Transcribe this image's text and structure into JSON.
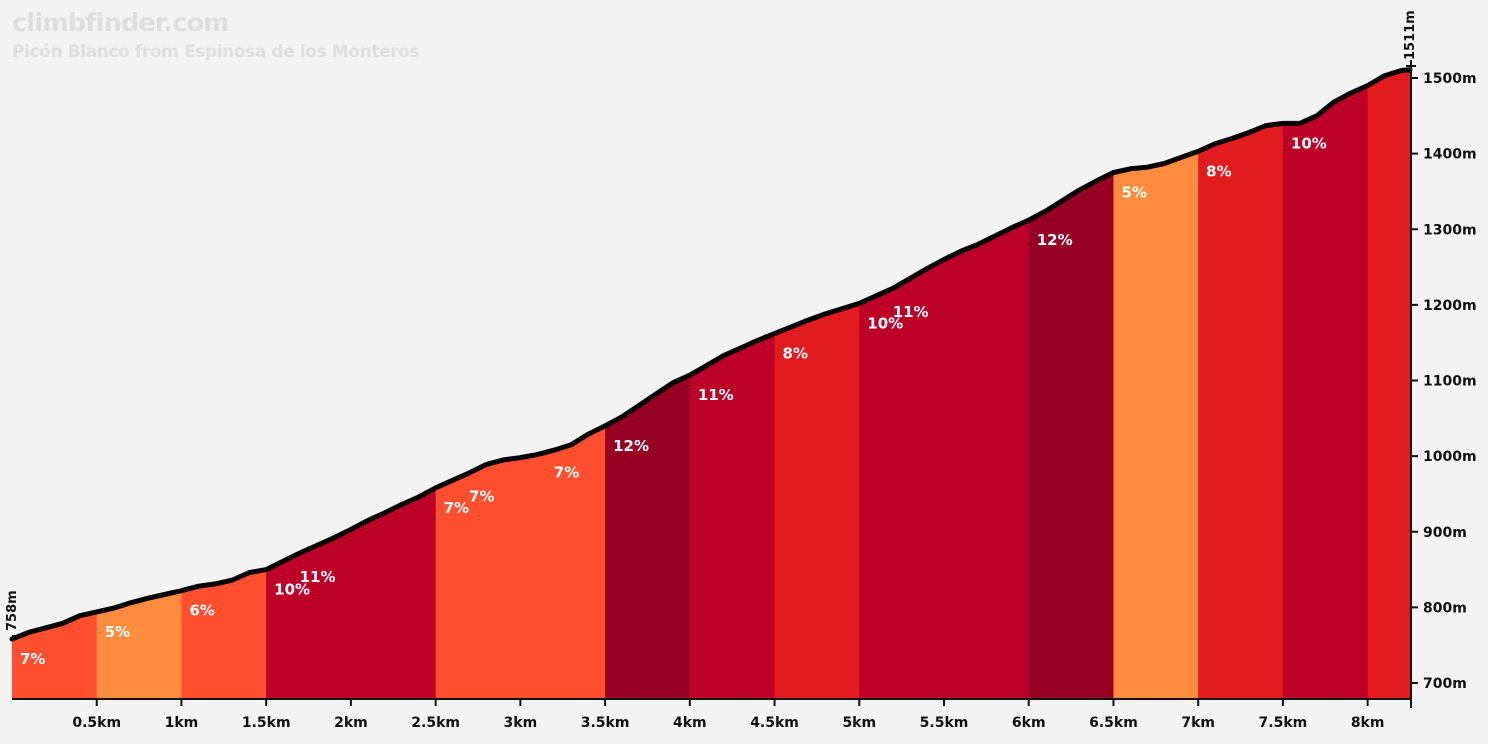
{
  "chart_data": {
    "type": "area",
    "title": "climbfinder.com",
    "subtitle": "Picón Blanco from Espinosa de los Monteros",
    "start_elevation_label": "758m",
    "end_elevation_label": "1511m",
    "x_unit": "km",
    "y_unit": "m",
    "xlim": [
      0,
      8.25
    ],
    "ylim": [
      685,
      1511
    ],
    "x_ticks": [
      0.5,
      1,
      1.5,
      2,
      2.5,
      3,
      3.5,
      4,
      4.5,
      5,
      5.5,
      6,
      6.5,
      7,
      7.5,
      8
    ],
    "x_tick_labels": [
      "0.5km",
      "1km",
      "1.5km",
      "2km",
      "2.5km",
      "3km",
      "3.5km",
      "4km",
      "4.5km",
      "5km",
      "5.5km",
      "6km",
      "6.5km",
      "7km",
      "7.5km",
      "8km"
    ],
    "y_ticks": [
      700,
      800,
      900,
      1000,
      1100,
      1200,
      1300,
      1400,
      1500
    ],
    "y_tick_labels": [
      "700m",
      "800m",
      "900m",
      "1000m",
      "1100m",
      "1200m",
      "1300m",
      "1400m",
      "1500m"
    ],
    "segments": [
      {
        "start": 0.0,
        "end": 0.5,
        "gradient_label": "7%",
        "color": "#ff4f2e"
      },
      {
        "start": 0.5,
        "end": 1.0,
        "gradient_label": "5%",
        "color": "#ff8b3e"
      },
      {
        "start": 1.0,
        "end": 1.5,
        "gradient_label": "6%",
        "color": "#ff4f2e"
      },
      {
        "start": 1.5,
        "end": 2.5,
        "gradient_label": "10%",
        "color": "#bc0028"
      },
      {
        "start": 2.5,
        "end": 3.5,
        "gradient_label": "7%",
        "color": "#ff4f2e"
      },
      {
        "start": 3.5,
        "end": 4.0,
        "gradient_label": "12%",
        "color": "#960022"
      },
      {
        "start": 4.0,
        "end": 4.5,
        "gradient_label": "11%",
        "color": "#bc0028"
      },
      {
        "start": 4.5,
        "end": 5.0,
        "gradient_label": "8%",
        "color": "#e21b1f"
      },
      {
        "start": 5.0,
        "end": 6.0,
        "gradient_label": "10%",
        "color": "#bc0028"
      },
      {
        "start": 6.0,
        "end": 6.5,
        "gradient_label": "12%",
        "color": "#960022"
      },
      {
        "start": 6.5,
        "end": 7.0,
        "gradient_label": "5%",
        "color": "#ff8b3e"
      },
      {
        "start": 7.0,
        "end": 7.5,
        "gradient_label": "8%",
        "color": "#e21b1f"
      },
      {
        "start": 7.5,
        "end": 8.0,
        "gradient_label": "10%",
        "color": "#bc0028"
      },
      {
        "start": 8.0,
        "end": 8.25,
        "gradient_label": "",
        "color": "#e21b1f"
      }
    ],
    "extra_gradient_labels": [
      {
        "at": 1.65,
        "label": "11%"
      },
      {
        "at": 5.15,
        "label": "11%"
      },
      {
        "at": 3.15,
        "label": "7%"
      },
      {
        "at": 2.65,
        "label": "7%"
      }
    ],
    "profile": [
      [
        0.0,
        758
      ],
      [
        0.1,
        767
      ],
      [
        0.2,
        773
      ],
      [
        0.3,
        779
      ],
      [
        0.4,
        789
      ],
      [
        0.5,
        794
      ],
      [
        0.6,
        799
      ],
      [
        0.7,
        806
      ],
      [
        0.8,
        812
      ],
      [
        0.9,
        817
      ],
      [
        1.0,
        822
      ],
      [
        1.1,
        828
      ],
      [
        1.2,
        831
      ],
      [
        1.3,
        836
      ],
      [
        1.4,
        846
      ],
      [
        1.5,
        850
      ],
      [
        1.6,
        861
      ],
      [
        1.7,
        872
      ],
      [
        1.8,
        882
      ],
      [
        1.9,
        892
      ],
      [
        2.0,
        903
      ],
      [
        2.1,
        915
      ],
      [
        2.2,
        925
      ],
      [
        2.3,
        936
      ],
      [
        2.4,
        946
      ],
      [
        2.5,
        958
      ],
      [
        2.6,
        968
      ],
      [
        2.7,
        978
      ],
      [
        2.8,
        989
      ],
      [
        2.9,
        995
      ],
      [
        3.0,
        998
      ],
      [
        3.1,
        1002
      ],
      [
        3.2,
        1008
      ],
      [
        3.3,
        1015
      ],
      [
        3.4,
        1029
      ],
      [
        3.5,
        1040
      ],
      [
        3.6,
        1052
      ],
      [
        3.7,
        1067
      ],
      [
        3.8,
        1082
      ],
      [
        3.9,
        1097
      ],
      [
        4.0,
        1107
      ],
      [
        4.1,
        1120
      ],
      [
        4.2,
        1133
      ],
      [
        4.3,
        1143
      ],
      [
        4.4,
        1153
      ],
      [
        4.5,
        1162
      ],
      [
        4.6,
        1171
      ],
      [
        4.7,
        1180
      ],
      [
        4.8,
        1188
      ],
      [
        4.9,
        1195
      ],
      [
        5.0,
        1202
      ],
      [
        5.1,
        1212
      ],
      [
        5.2,
        1222
      ],
      [
        5.3,
        1235
      ],
      [
        5.4,
        1248
      ],
      [
        5.5,
        1260
      ],
      [
        5.6,
        1271
      ],
      [
        5.7,
        1280
      ],
      [
        5.8,
        1291
      ],
      [
        5.9,
        1302
      ],
      [
        6.0,
        1312
      ],
      [
        6.1,
        1324
      ],
      [
        6.2,
        1338
      ],
      [
        6.3,
        1352
      ],
      [
        6.4,
        1364
      ],
      [
        6.5,
        1375
      ],
      [
        6.6,
        1380
      ],
      [
        6.7,
        1382
      ],
      [
        6.8,
        1387
      ],
      [
        6.9,
        1395
      ],
      [
        7.0,
        1403
      ],
      [
        7.1,
        1413
      ],
      [
        7.2,
        1420
      ],
      [
        7.3,
        1428
      ],
      [
        7.4,
        1437
      ],
      [
        7.5,
        1440
      ],
      [
        7.6,
        1440
      ],
      [
        7.7,
        1450
      ],
      [
        7.8,
        1468
      ],
      [
        7.9,
        1480
      ],
      [
        8.0,
        1490
      ],
      [
        8.1,
        1503
      ],
      [
        8.2,
        1510
      ],
      [
        8.25,
        1511
      ]
    ]
  }
}
